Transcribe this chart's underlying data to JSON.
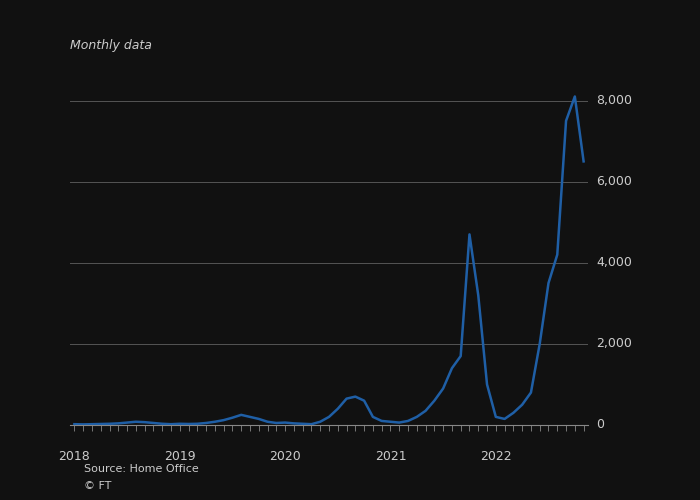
{
  "subtitle": "Monthly data",
  "source": "Source: Home Office",
  "copyright": "© FT",
  "line_color": "#1f5fa6",
  "background_color": "#111111",
  "text_color": "#cccccc",
  "grid_color": "#555555",
  "axis_color": "#888888",
  "ylim": [
    0,
    9000
  ],
  "yticks": [
    0,
    2000,
    4000,
    6000,
    8000
  ],
  "values": [
    20,
    15,
    20,
    25,
    30,
    40,
    60,
    80,
    70,
    50,
    30,
    20,
    30,
    25,
    30,
    50,
    80,
    120,
    180,
    250,
    200,
    150,
    80,
    50,
    60,
    40,
    30,
    20,
    80,
    200,
    400,
    650,
    700,
    600,
    200,
    100,
    80,
    60,
    100,
    200,
    350,
    600,
    900,
    1400,
    1700,
    4700,
    3200,
    1000,
    200,
    150,
    300,
    500,
    800,
    2000,
    3500,
    4200,
    7500,
    8100,
    6500
  ],
  "xtick_years": [
    "2018",
    "2019",
    "2020",
    "2021",
    "2022"
  ],
  "xtick_positions": [
    0,
    12,
    24,
    36,
    48
  ]
}
